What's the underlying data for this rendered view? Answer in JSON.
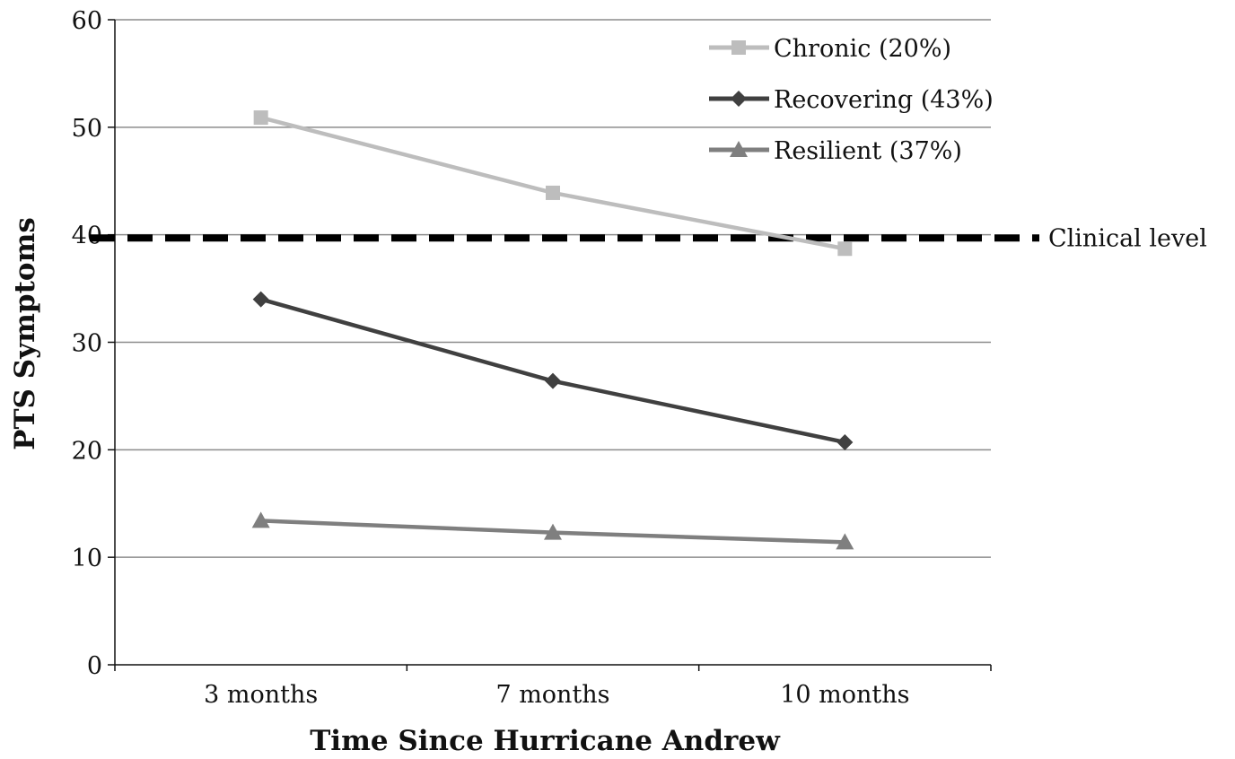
{
  "chart_data": {
    "type": "line",
    "title": "",
    "xlabel": "Time Since Hurricane Andrew",
    "ylabel": "PTS Symptoms",
    "categories": [
      "3 months",
      "7 months",
      "10 months"
    ],
    "ylim": [
      0,
      60
    ],
    "yticks": [
      0,
      10,
      20,
      30,
      40,
      50,
      60
    ],
    "grid": true,
    "legend_position": "top-right",
    "series": [
      {
        "name": "Chronic (20%)",
        "values": [
          50.9,
          43.9,
          38.7
        ],
        "color": "#bdbdbd",
        "marker": "square"
      },
      {
        "name": "Recovering (43%)",
        "values": [
          34.0,
          26.4,
          20.7
        ],
        "color": "#404040",
        "marker": "diamond"
      },
      {
        "name": "Resilient (37%)",
        "values": [
          13.4,
          12.3,
          11.4
        ],
        "color": "#7f7f7f",
        "marker": "triangle"
      }
    ],
    "reference_line": {
      "label": "Clinical level",
      "value": 39.7,
      "color": "#000000",
      "style": "dashed"
    }
  }
}
